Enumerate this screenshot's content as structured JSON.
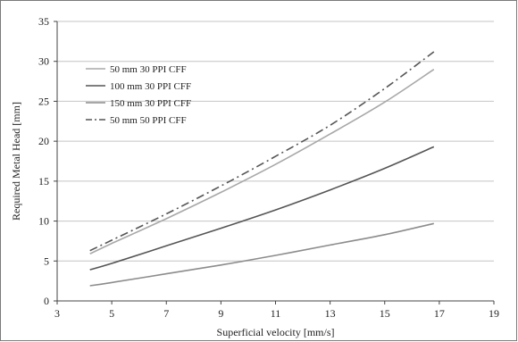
{
  "chart_data": {
    "type": "line",
    "title": "",
    "xlabel": "Superficial velocity [mm/s]",
    "ylabel": "Required Metal Head [mm]",
    "xlim": [
      3,
      19
    ],
    "ylim": [
      0,
      35
    ],
    "xticks": [
      3,
      5,
      7,
      9,
      11,
      13,
      15,
      17,
      19
    ],
    "yticks": [
      0,
      5,
      10,
      15,
      20,
      25,
      30,
      35
    ],
    "grid": "horizontal",
    "legend_position": "top-left",
    "series": [
      {
        "name": "50 mm 30 PPI CFF",
        "color": "#a8a8a8",
        "style": "solid",
        "x": [
          4.2,
          5,
          7,
          9,
          11,
          13,
          15,
          16.8
        ],
        "y": [
          5.9,
          7.2,
          10.3,
          13.6,
          17.1,
          20.9,
          24.9,
          29.0
        ]
      },
      {
        "name": "100 mm 30 PPI CFF",
        "color": "#555555",
        "style": "solid",
        "x": [
          4.2,
          5,
          7,
          9,
          11,
          13,
          15,
          16.8
        ],
        "y": [
          3.9,
          4.7,
          6.9,
          9.1,
          11.4,
          13.9,
          16.6,
          19.3
        ]
      },
      {
        "name": "150 mm 30 PPI CFF",
        "color": "#8c8c8c",
        "style": "solid",
        "x": [
          4.2,
          5,
          7,
          9,
          11,
          13,
          15,
          16.8
        ],
        "y": [
          1.9,
          2.3,
          3.4,
          4.5,
          5.7,
          7.0,
          8.3,
          9.7
        ]
      },
      {
        "name": "50 mm 50 PPI CFF",
        "color": "#555555",
        "style": "dashdot",
        "x": [
          4.2,
          5,
          7,
          9,
          11,
          13,
          15,
          16.8
        ],
        "y": [
          6.3,
          7.6,
          10.9,
          14.4,
          18.1,
          22.0,
          26.6,
          31.2
        ]
      }
    ]
  }
}
